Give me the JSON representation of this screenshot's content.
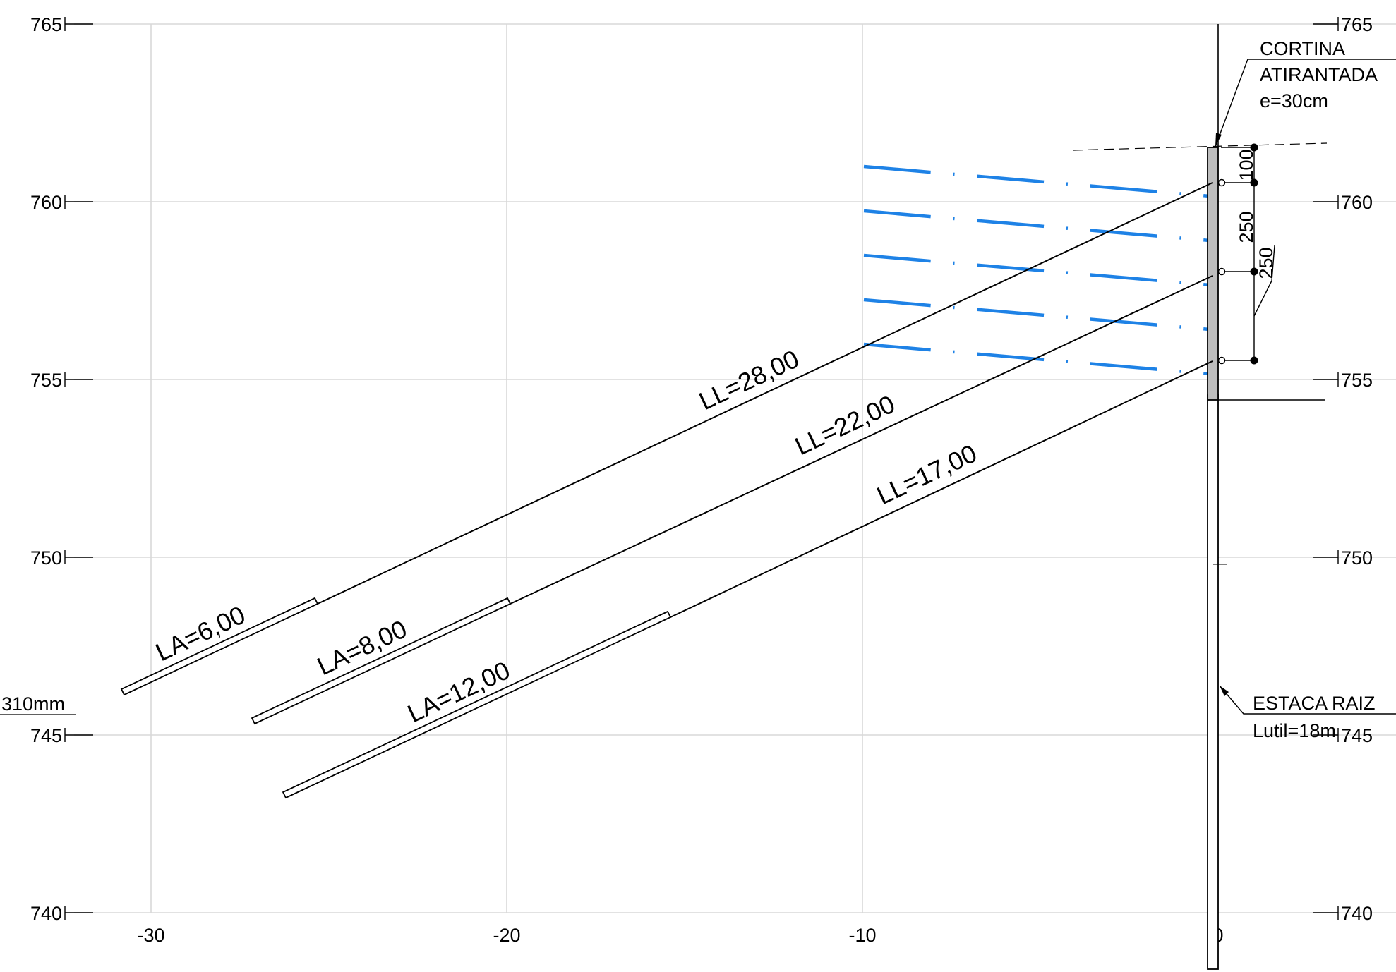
{
  "drawing": {
    "elevation_left_labels": [
      "765",
      "760",
      "755",
      "750",
      "745",
      "740"
    ],
    "elevation_right_labels": [
      "765",
      "760",
      "755",
      "750",
      "745",
      "740"
    ],
    "distance_labels": [
      "-30",
      "-20",
      "-10",
      "0"
    ],
    "wall_label": {
      "line1": "CORTINA",
      "line2": "ATIRANTADA",
      "line3": "e=30cm"
    },
    "pile_label": {
      "line1": "ESTACA RAIZ",
      "line2": "Lutil=18m"
    },
    "diameter_label": "310mm",
    "dimensions": [
      "100",
      "250",
      "250"
    ],
    "anchors": [
      {
        "free_length": "LL=28,00",
        "anchored_length": "LA=6,00"
      },
      {
        "free_length": "LL=22,00",
        "anchored_length": "LA=8,00"
      },
      {
        "free_length": "LL=17,00",
        "anchored_length": "LA=12,00"
      }
    ],
    "colors": {
      "drainage_lines": "#1e82e6",
      "wall_fill": "#bdbdbd",
      "grid": "#d8d8d8"
    }
  }
}
